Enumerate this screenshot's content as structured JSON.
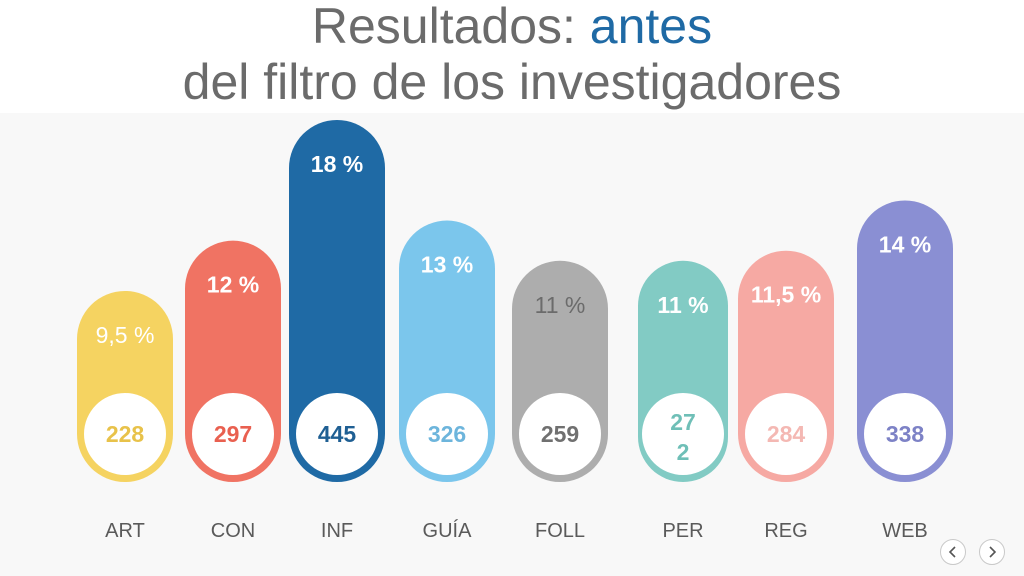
{
  "title": {
    "line1_prefix": "Resultados: ",
    "line1_accent": "antes",
    "line2": "del filtro de los investigadores"
  },
  "colors": {
    "title_text": "#6b6b6b",
    "title_accent": "#1f6aa5",
    "panel_bg": "#f8f8f8"
  },
  "nav": {
    "prev_icon": "chevron-left-icon",
    "next_icon": "chevron-right-icon"
  },
  "chart_data": {
    "type": "bar",
    "title": "",
    "xlabel": "",
    "ylabel": "",
    "ylim": [
      0,
      18
    ],
    "grid": false,
    "categories": [
      "ART",
      "CON",
      "INF",
      "GUÍA",
      "FOLL",
      "PER",
      "REG",
      "WEB"
    ],
    "values": [
      9.5,
      12,
      18,
      13,
      11,
      11,
      11.5,
      14
    ],
    "value_labels": [
      "9,5 %",
      "12 %",
      "18 %",
      "13 %",
      "11 %",
      "11 %",
      "11,5 %",
      "14 %"
    ],
    "counts": [
      "228",
      "297",
      "445",
      "326",
      "259",
      "27\n2",
      "284",
      "338"
    ],
    "bar_colors": [
      "#f5d361",
      "#f07363",
      "#1f6aa5",
      "#7bc6ec",
      "#adadad",
      "#82cbc4",
      "#f6a9a3",
      "#8a8fd3"
    ],
    "count_colors": [
      "#e8c24a",
      "#e96050",
      "#1f5f93",
      "#6db5dc",
      "#707070",
      "#6fbfb7",
      "#f4b8b3",
      "#7d82c6"
    ],
    "pct_colors": [
      "#ffffff",
      "#ffffff",
      "#ffffff",
      "#ffffff",
      "#6b6b6b",
      "#ffffff",
      "#ffffff",
      "#ffffff"
    ]
  }
}
